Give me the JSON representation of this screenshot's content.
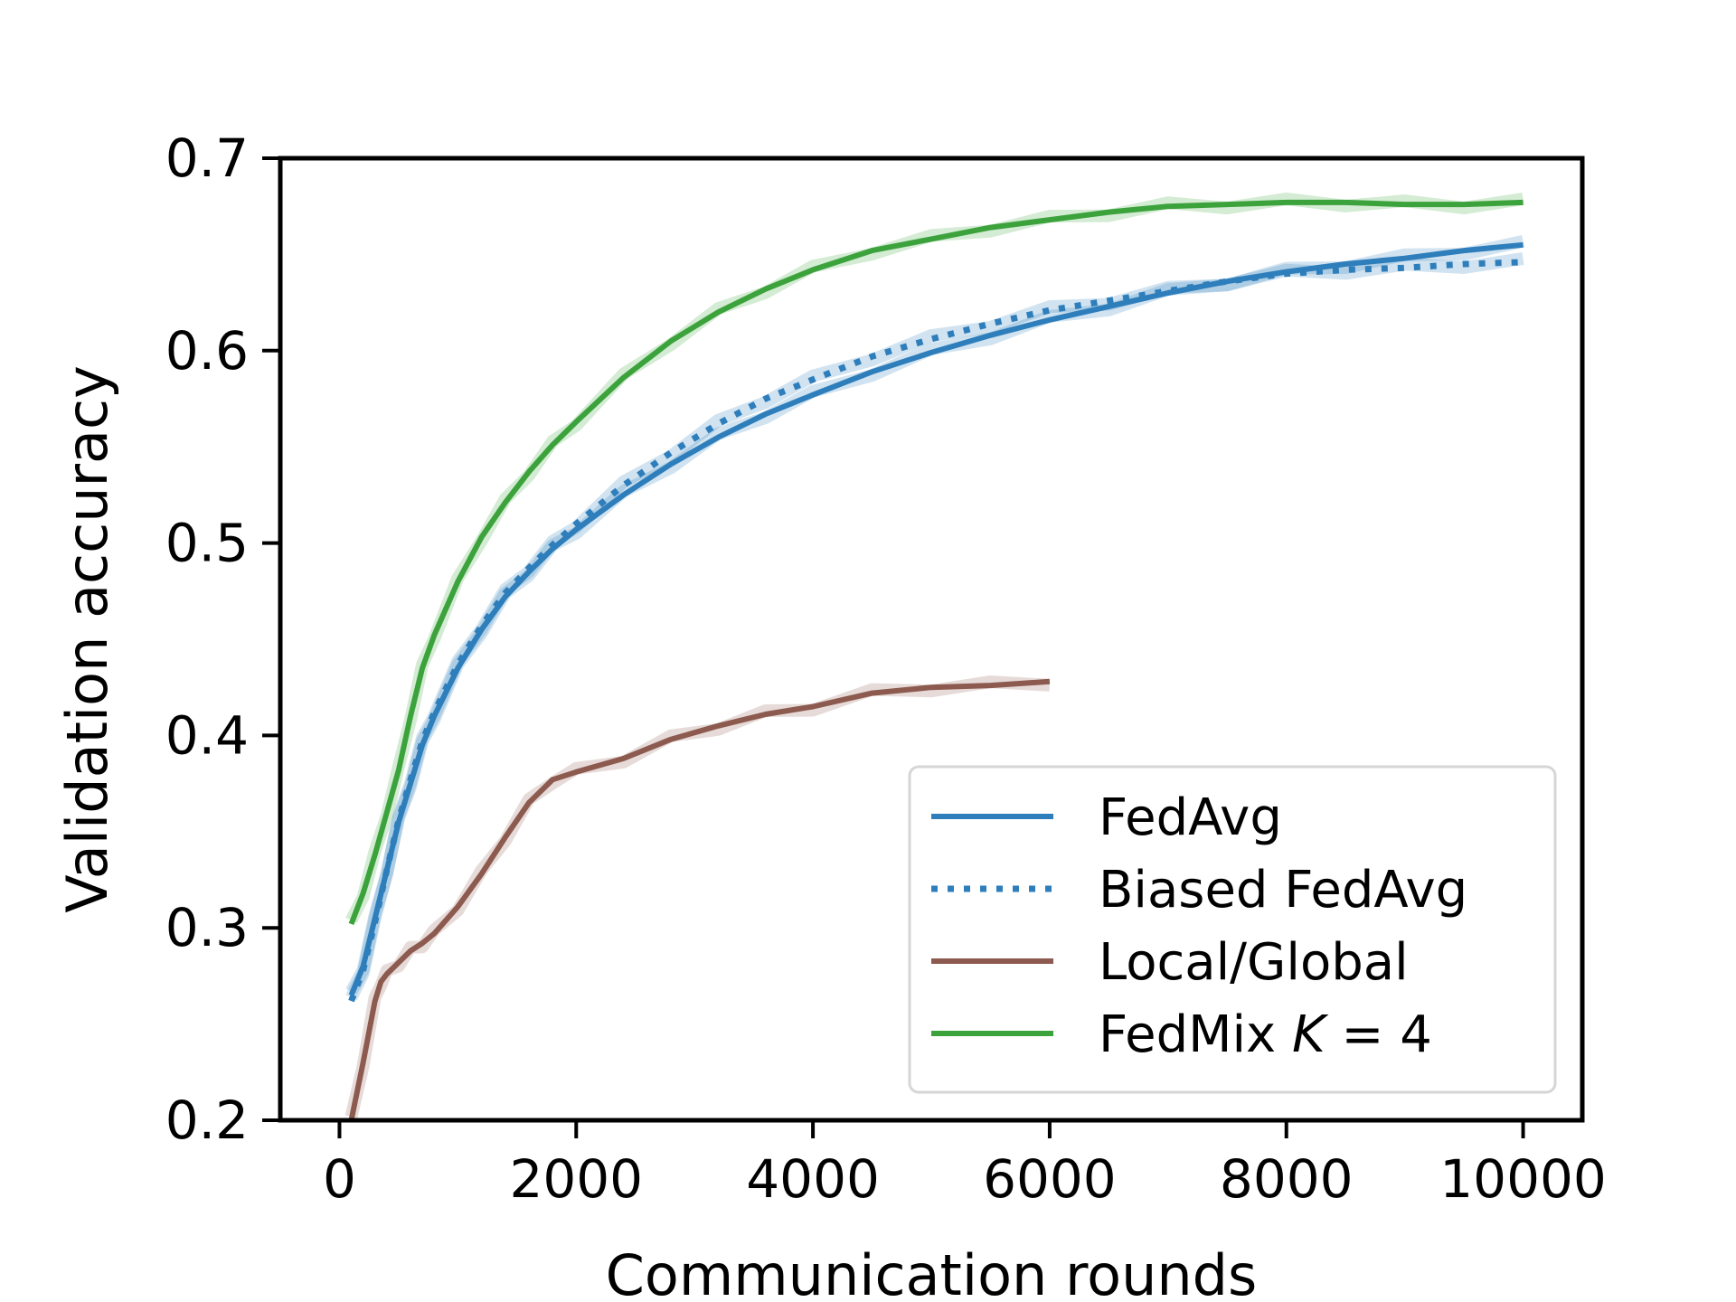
{
  "chart_data": {
    "type": "line",
    "xlabel": "Communication rounds",
    "ylabel": "Validation accuracy",
    "xlim": [
      -500,
      10500
    ],
    "ylim": [
      0.2,
      0.7
    ],
    "xticks": [
      0,
      2000,
      4000,
      6000,
      8000,
      10000
    ],
    "xtick_labels": [
      "0",
      "2000",
      "4000",
      "6000",
      "8000",
      "10000"
    ],
    "yticks": [
      0.2,
      0.3,
      0.4,
      0.5,
      0.6,
      0.7
    ],
    "ytick_labels": [
      "0.2",
      "0.3",
      "0.4",
      "0.5",
      "0.6",
      "0.7"
    ],
    "grid": false,
    "legend_position": "lower-right",
    "series": [
      {
        "name": "FedAvg",
        "color": "#2e7ebc",
        "style": "solid",
        "x": [
          100,
          200,
          300,
          400,
          500,
          600,
          700,
          800,
          1000,
          1200,
          1400,
          1600,
          1800,
          2000,
          2400,
          2800,
          3200,
          3600,
          4000,
          4500,
          5000,
          5500,
          6000,
          6500,
          7000,
          7500,
          8000,
          8500,
          9000,
          9500,
          10000
        ],
        "y": [
          0.265,
          0.28,
          0.305,
          0.33,
          0.355,
          0.375,
          0.395,
          0.41,
          0.435,
          0.455,
          0.472,
          0.485,
          0.497,
          0.507,
          0.525,
          0.541,
          0.555,
          0.567,
          0.577,
          0.589,
          0.599,
          0.608,
          0.616,
          0.623,
          0.63,
          0.636,
          0.641,
          0.645,
          0.648,
          0.652,
          0.655
        ]
      },
      {
        "name": "Biased FedAvg",
        "color": "#2e7ebc",
        "style": "dotted",
        "x": [
          100,
          200,
          300,
          400,
          500,
          600,
          700,
          800,
          1000,
          1200,
          1400,
          1600,
          1800,
          2000,
          2400,
          2800,
          3200,
          3600,
          4000,
          4500,
          5000,
          5500,
          6000,
          6500,
          7000,
          7500,
          8000,
          8500,
          9000,
          9500,
          10000
        ],
        "y": [
          0.262,
          0.278,
          0.303,
          0.33,
          0.356,
          0.377,
          0.397,
          0.412,
          0.437,
          0.457,
          0.474,
          0.487,
          0.499,
          0.51,
          0.53,
          0.547,
          0.562,
          0.575,
          0.585,
          0.597,
          0.606,
          0.614,
          0.621,
          0.626,
          0.631,
          0.636,
          0.64,
          0.642,
          0.643,
          0.645,
          0.646
        ]
      },
      {
        "name": "Local/Global",
        "color": "#8c5a4f",
        "style": "solid",
        "x": [
          100,
          200,
          300,
          350,
          400,
          500,
          600,
          700,
          800,
          1000,
          1200,
          1400,
          1600,
          1800,
          2000,
          2400,
          2800,
          3200,
          3600,
          4000,
          4500,
          5000,
          5500,
          6000
        ],
        "y": [
          0.2,
          0.23,
          0.262,
          0.272,
          0.276,
          0.282,
          0.288,
          0.292,
          0.297,
          0.311,
          0.328,
          0.347,
          0.365,
          0.377,
          0.381,
          0.388,
          0.398,
          0.405,
          0.411,
          0.415,
          0.422,
          0.425,
          0.426,
          0.428
        ]
      },
      {
        "name": "FedMix K = 4",
        "label_text": "FedMix ",
        "label_math": "K",
        "label_suffix": " = 4",
        "color": "#3ca23c",
        "style": "solid",
        "x": [
          100,
          200,
          300,
          400,
          500,
          600,
          700,
          800,
          1000,
          1200,
          1400,
          1600,
          1800,
          2000,
          2400,
          2800,
          3200,
          3600,
          4000,
          4500,
          5000,
          5500,
          6000,
          6500,
          7000,
          7500,
          8000,
          8500,
          9000,
          9500,
          10000
        ],
        "y": [
          0.302,
          0.318,
          0.338,
          0.36,
          0.382,
          0.41,
          0.435,
          0.452,
          0.48,
          0.503,
          0.521,
          0.537,
          0.551,
          0.563,
          0.586,
          0.605,
          0.62,
          0.632,
          0.642,
          0.652,
          0.658,
          0.664,
          0.668,
          0.672,
          0.675,
          0.676,
          0.677,
          0.677,
          0.676,
          0.676,
          0.677
        ]
      }
    ]
  }
}
